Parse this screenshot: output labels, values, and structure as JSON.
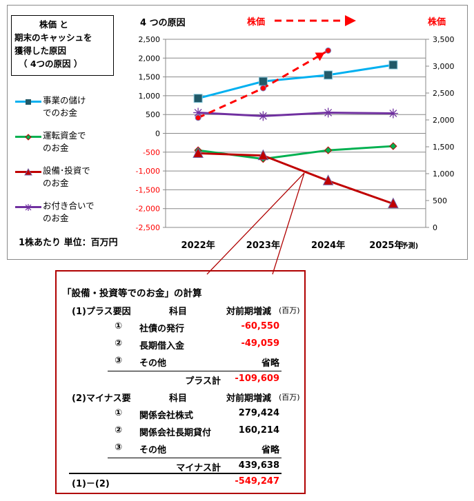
{
  "title_box": [
    "株価 と",
    "期末のキャッシュを",
    "獲得した原因",
    "（  4つの原因  ）"
  ],
  "chart_header": "4 つの原因",
  "stock_label": "株価",
  "stock_label_right": "株価",
  "unit_note": "1株あたり   単位：百万円",
  "legend": [
    {
      "line1": "事業の儲け",
      "line2": "でのお金",
      "color": "#00b0f0"
    },
    {
      "line1": "運転資金で",
      "line2": "のお金",
      "color": "#00b050"
    },
    {
      "line1": "設備･投資で",
      "line2": "のお金",
      "color": "#c00000"
    },
    {
      "line1": "お付き合いで",
      "line2": "のお金",
      "color": "#7030a0"
    }
  ],
  "chart_data": {
    "type": "line",
    "categories": [
      "2022年",
      "2023年",
      "2024年",
      "2025年"
    ],
    "category_suffix_last": "(予測)",
    "left_axis": {
      "ylim": [
        -2500,
        2500
      ],
      "ticks": [
        "2,500",
        "2,000",
        "1,500",
        "1,000",
        "500",
        "0",
        "-500",
        "-1,000",
        "-1,500",
        "-2,000",
        "-2,500"
      ],
      "values": [
        2500,
        2000,
        1500,
        1000,
        500,
        0,
        -500,
        -1000,
        -1500,
        -2000,
        -2500
      ]
    },
    "right_axis": {
      "ylim": [
        0,
        3500
      ],
      "ticks": [
        "3,500",
        "3,000",
        "2,500",
        "2,000",
        "1,500",
        "1,000",
        "500",
        "0"
      ],
      "values": [
        3500,
        3000,
        2500,
        2000,
        1500,
        1000,
        500,
        0
      ]
    },
    "series": [
      {
        "name": "事業の儲けでのお金",
        "axis": "left",
        "values": [
          930,
          1380,
          1550,
          1820
        ],
        "color": "#00b0f0",
        "marker": "square"
      },
      {
        "name": "運転資金でのお金",
        "axis": "left",
        "values": [
          -450,
          -680,
          -450,
          -340
        ],
        "color": "#00b050",
        "marker": "diamond"
      },
      {
        "name": "設備･投資でのお金",
        "axis": "left",
        "values": [
          -530,
          -590,
          -1260,
          -1870
        ],
        "color": "#c00000",
        "marker": "triangle"
      },
      {
        "name": "お付き合いでのお金",
        "axis": "left",
        "values": [
          550,
          460,
          550,
          530
        ],
        "color": "#7030a0",
        "marker": "star"
      },
      {
        "name": "株価",
        "axis": "right",
        "values": [
          2040,
          2590,
          3290,
          null
        ],
        "color": "#ff0000",
        "marker": "circle",
        "dashed": true
      }
    ],
    "grid": true
  },
  "callout": {
    "title": "「設備・投資等でのお金」の計算",
    "plus": {
      "heading": "(1)プラス要因",
      "col_item": "科目",
      "col_val": "対前期増減",
      "col_unit": "(百万)",
      "rows": [
        {
          "no": "①",
          "item": "社債の発行",
          "value": "-60,550"
        },
        {
          "no": "②",
          "item": "長期借入金",
          "value": "-49,059"
        },
        {
          "no": "③",
          "item": "その他",
          "value": "省略"
        }
      ],
      "total_label": "プラス計",
      "total": "-109,609"
    },
    "minus": {
      "heading": "(2)マイナス要",
      "col_item": "科目",
      "col_val": "対前期増減",
      "col_unit": "(百万)",
      "rows": [
        {
          "no": "①",
          "item": "関係会社株式",
          "value": "279,424"
        },
        {
          "no": "②",
          "item": "関係会社長期貸付",
          "value": "160,214"
        },
        {
          "no": "③",
          "item": "その他",
          "value": "省略"
        }
      ],
      "total_label": "マイナス計",
      "total": "439,638"
    },
    "diff_label": "(1)－(2)",
    "diff": "-549,247"
  }
}
